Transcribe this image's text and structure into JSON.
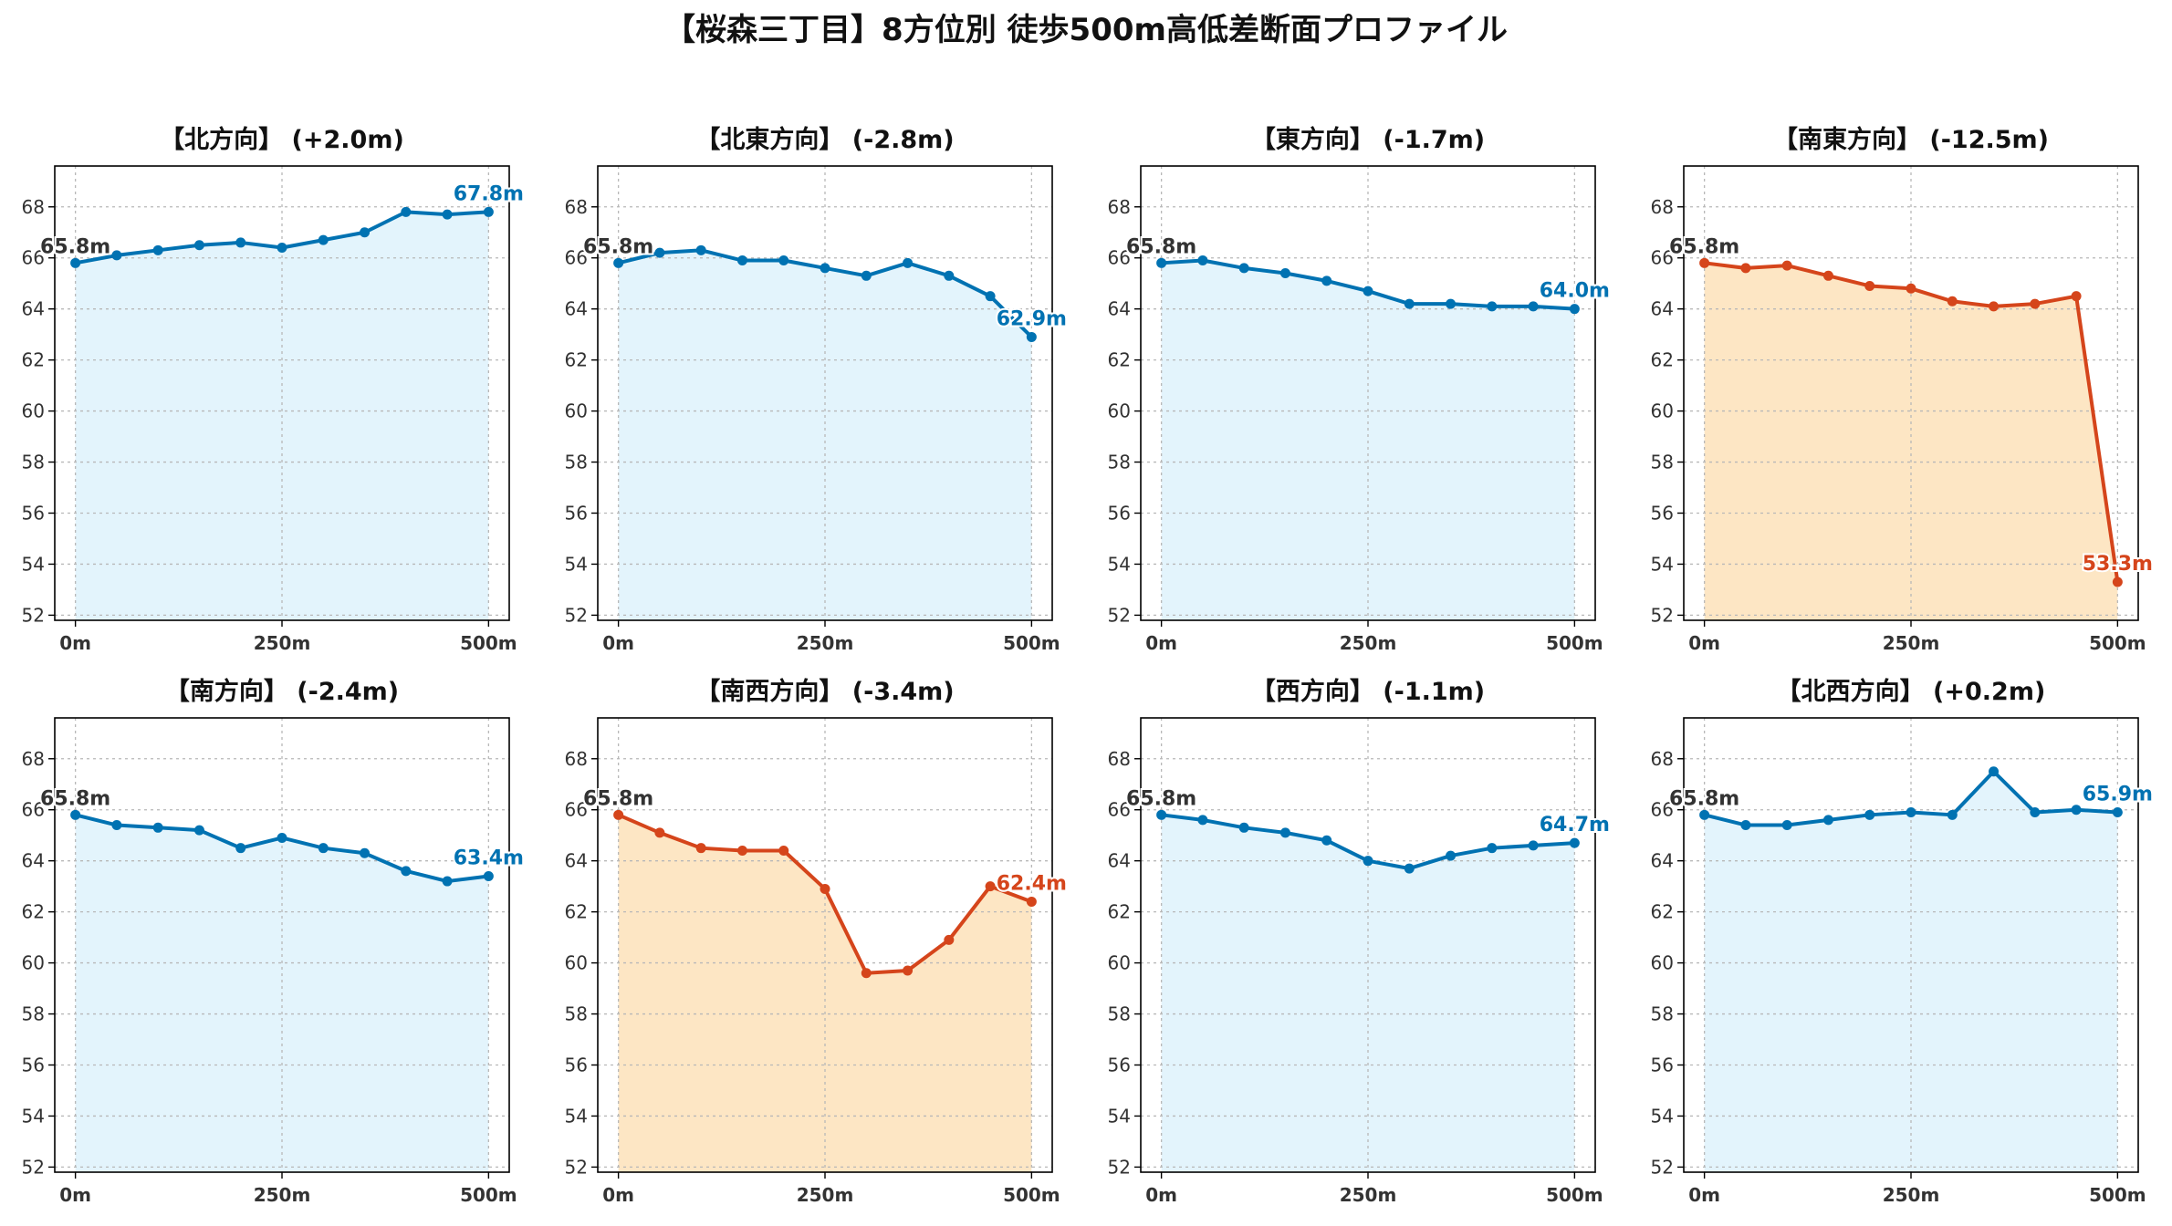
{
  "figure_title": "【桜森三丁目】8方位別 徒歩500m高低差断面プロファイル",
  "colors": {
    "normal_line": "#0072b2",
    "normal_fill": "#e3f4fc",
    "steep_line": "#d5451b",
    "steep_fill": "#fde6c4",
    "start_label": "#333333"
  },
  "chart_data": [
    {
      "type": "area",
      "title": "【北方向】 (+2.0m)",
      "x": [
        0,
        50,
        100,
        150,
        200,
        250,
        300,
        350,
        400,
        450,
        500
      ],
      "y": [
        65.8,
        66.1,
        66.3,
        66.5,
        66.6,
        66.4,
        66.7,
        67.0,
        67.8,
        67.7,
        67.8
      ],
      "xticks": [
        "0m",
        "250m",
        "500m"
      ],
      "xtick_values": [
        0,
        250,
        500
      ],
      "yticks": [
        52,
        54,
        56,
        58,
        60,
        62,
        64,
        66,
        68
      ],
      "xlim": [
        -25,
        525
      ],
      "ylim": [
        51.8,
        69.6
      ],
      "start_label": "65.8m",
      "end_label": "67.8m",
      "style": "normal",
      "grid": true
    },
    {
      "type": "area",
      "title": "【北東方向】 (-2.8m)",
      "x": [
        0,
        50,
        100,
        150,
        200,
        250,
        300,
        350,
        400,
        450,
        500
      ],
      "y": [
        65.8,
        66.2,
        66.3,
        65.9,
        65.9,
        65.6,
        65.3,
        65.8,
        65.3,
        64.5,
        62.9
      ],
      "xticks": [
        "0m",
        "250m",
        "500m"
      ],
      "xtick_values": [
        0,
        250,
        500
      ],
      "yticks": [
        52,
        54,
        56,
        58,
        60,
        62,
        64,
        66,
        68
      ],
      "xlim": [
        -25,
        525
      ],
      "ylim": [
        51.8,
        69.6
      ],
      "start_label": "65.8m",
      "end_label": "62.9m",
      "style": "normal",
      "grid": true
    },
    {
      "type": "area",
      "title": "【東方向】 (-1.7m)",
      "x": [
        0,
        50,
        100,
        150,
        200,
        250,
        300,
        350,
        400,
        450,
        500
      ],
      "y": [
        65.8,
        65.9,
        65.6,
        65.4,
        65.1,
        64.7,
        64.2,
        64.2,
        64.1,
        64.1,
        64.0
      ],
      "xticks": [
        "0m",
        "250m",
        "500m"
      ],
      "xtick_values": [
        0,
        250,
        500
      ],
      "yticks": [
        52,
        54,
        56,
        58,
        60,
        62,
        64,
        66,
        68
      ],
      "xlim": [
        -25,
        525
      ],
      "ylim": [
        51.8,
        69.6
      ],
      "start_label": "65.8m",
      "end_label": "64.0m",
      "style": "normal",
      "grid": true
    },
    {
      "type": "area",
      "title": "【南東方向】 (-12.5m)",
      "x": [
        0,
        50,
        100,
        150,
        200,
        250,
        300,
        350,
        400,
        450,
        500
      ],
      "y": [
        65.8,
        65.6,
        65.7,
        65.3,
        64.9,
        64.8,
        64.3,
        64.1,
        64.2,
        64.5,
        53.3
      ],
      "xticks": [
        "0m",
        "250m",
        "500m"
      ],
      "xtick_values": [
        0,
        250,
        500
      ],
      "yticks": [
        52,
        54,
        56,
        58,
        60,
        62,
        64,
        66,
        68
      ],
      "xlim": [
        -25,
        525
      ],
      "ylim": [
        51.8,
        69.6
      ],
      "start_label": "65.8m",
      "end_label": "53.3m",
      "style": "steep",
      "grid": true
    },
    {
      "type": "area",
      "title": "【南方向】 (-2.4m)",
      "x": [
        0,
        50,
        100,
        150,
        200,
        250,
        300,
        350,
        400,
        450,
        500
      ],
      "y": [
        65.8,
        65.4,
        65.3,
        65.2,
        64.5,
        64.9,
        64.5,
        64.3,
        63.6,
        63.2,
        63.4
      ],
      "xticks": [
        "0m",
        "250m",
        "500m"
      ],
      "xtick_values": [
        0,
        250,
        500
      ],
      "yticks": [
        52,
        54,
        56,
        58,
        60,
        62,
        64,
        66,
        68
      ],
      "xlim": [
        -25,
        525
      ],
      "ylim": [
        51.8,
        69.6
      ],
      "start_label": "65.8m",
      "end_label": "63.4m",
      "style": "normal",
      "grid": true
    },
    {
      "type": "area",
      "title": "【南西方向】 (-3.4m)",
      "x": [
        0,
        50,
        100,
        150,
        200,
        250,
        300,
        350,
        400,
        450,
        500
      ],
      "y": [
        65.8,
        65.1,
        64.5,
        64.4,
        64.4,
        62.9,
        59.6,
        59.7,
        60.9,
        63.0,
        62.4
      ],
      "xticks": [
        "0m",
        "250m",
        "500m"
      ],
      "xtick_values": [
        0,
        250,
        500
      ],
      "yticks": [
        52,
        54,
        56,
        58,
        60,
        62,
        64,
        66,
        68
      ],
      "xlim": [
        -25,
        525
      ],
      "ylim": [
        51.8,
        69.6
      ],
      "start_label": "65.8m",
      "end_label": "62.4m",
      "style": "steep",
      "grid": true
    },
    {
      "type": "area",
      "title": "【西方向】 (-1.1m)",
      "x": [
        0,
        50,
        100,
        150,
        200,
        250,
        300,
        350,
        400,
        450,
        500
      ],
      "y": [
        65.8,
        65.6,
        65.3,
        65.1,
        64.8,
        64.0,
        63.7,
        64.2,
        64.5,
        64.6,
        64.7
      ],
      "xticks": [
        "0m",
        "250m",
        "500m"
      ],
      "xtick_values": [
        0,
        250,
        500
      ],
      "yticks": [
        52,
        54,
        56,
        58,
        60,
        62,
        64,
        66,
        68
      ],
      "xlim": [
        -25,
        525
      ],
      "ylim": [
        51.8,
        69.6
      ],
      "start_label": "65.8m",
      "end_label": "64.7m",
      "style": "normal",
      "grid": true
    },
    {
      "type": "area",
      "title": "【北西方向】 (+0.2m)",
      "x": [
        0,
        50,
        100,
        150,
        200,
        250,
        300,
        350,
        400,
        450,
        500
      ],
      "y": [
        65.8,
        65.4,
        65.4,
        65.6,
        65.8,
        65.9,
        65.8,
        67.5,
        65.9,
        66.0,
        65.9
      ],
      "xticks": [
        "0m",
        "250m",
        "500m"
      ],
      "xtick_values": [
        0,
        250,
        500
      ],
      "yticks": [
        52,
        54,
        56,
        58,
        60,
        62,
        64,
        66,
        68
      ],
      "xlim": [
        -25,
        525
      ],
      "ylim": [
        51.8,
        69.6
      ],
      "start_label": "65.8m",
      "end_label": "65.9m",
      "style": "normal",
      "grid": true
    }
  ]
}
